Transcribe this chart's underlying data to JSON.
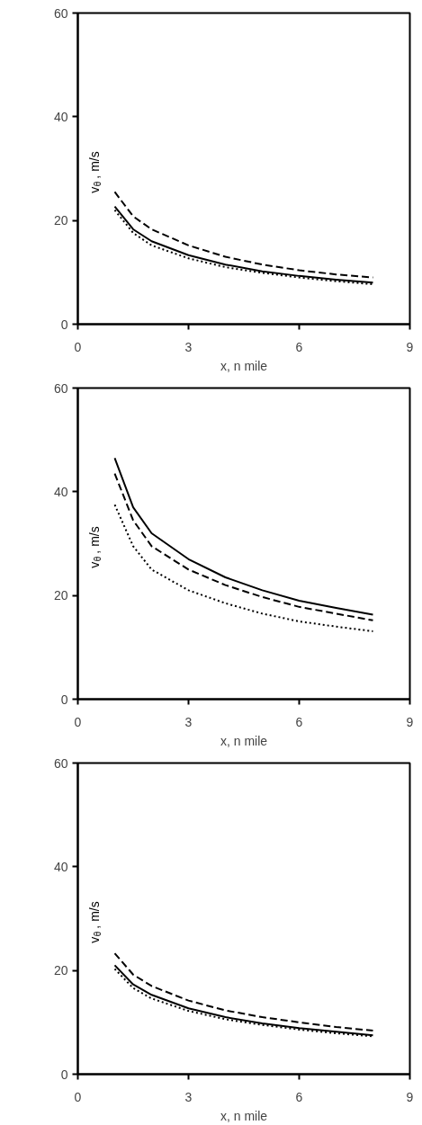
{
  "chart_data": [
    {
      "type": "line",
      "xlabel": "x, n mile",
      "ylabel": "v$_{θ}$, m/s",
      "xlim": [
        0,
        9
      ],
      "ylim": [
        0,
        60
      ],
      "xticks": [
        0,
        3,
        6,
        9
      ],
      "yticks": [
        0,
        20,
        40,
        60
      ],
      "grid": false,
      "x": [
        1,
        1.5,
        2,
        3,
        4,
        5,
        6,
        7,
        8
      ],
      "series": [
        {
          "color": "#000000",
          "line_style": "solid",
          "values": [
            22.7,
            18.3,
            16.0,
            13.3,
            11.5,
            10.2,
            9.3,
            8.6,
            8.0
          ]
        },
        {
          "color": "#000000",
          "line_style": "dashed",
          "values": [
            25.5,
            20.8,
            18.3,
            15.2,
            13.0,
            11.5,
            10.4,
            9.6,
            9.0
          ]
        },
        {
          "color": "#000000",
          "line_style": "dotted",
          "values": [
            22.0,
            17.6,
            15.2,
            12.7,
            11.0,
            9.9,
            9.0,
            8.3,
            7.7
          ]
        }
      ]
    },
    {
      "type": "line",
      "xlabel": "x, n mile",
      "ylabel": "v$_{θ}$, m/s",
      "xlim": [
        0,
        9
      ],
      "ylim": [
        0,
        60
      ],
      "xticks": [
        0,
        3,
        6,
        9
      ],
      "yticks": [
        0,
        20,
        40,
        60
      ],
      "grid": false,
      "x": [
        1,
        1.5,
        2,
        3,
        4,
        5,
        6,
        7,
        8
      ],
      "series": [
        {
          "color": "#000000",
          "line_style": "solid",
          "values": [
            46.5,
            37.0,
            32.0,
            27.0,
            23.5,
            21.0,
            19.0,
            17.6,
            16.3
          ]
        },
        {
          "color": "#000000",
          "line_style": "dashed",
          "values": [
            43.5,
            34.5,
            29.5,
            25.0,
            22.0,
            19.7,
            17.8,
            16.5,
            15.2
          ]
        },
        {
          "color": "#000000",
          "line_style": "dotted",
          "values": [
            37.5,
            29.5,
            25.0,
            21.0,
            18.5,
            16.5,
            15.0,
            14.0,
            13.1
          ]
        }
      ]
    },
    {
      "type": "line",
      "xlabel": "x, n mile",
      "ylabel": "v$_{θ}$, m/s",
      "xlim": [
        0,
        9
      ],
      "ylim": [
        0,
        60
      ],
      "xticks": [
        0,
        3,
        6,
        9
      ],
      "yticks": [
        0,
        20,
        40,
        60
      ],
      "grid": false,
      "x": [
        1,
        1.5,
        2,
        3,
        4,
        5,
        6,
        7,
        8
      ],
      "series": [
        {
          "color": "#000000",
          "line_style": "solid",
          "values": [
            21.0,
            17.3,
            15.3,
            12.7,
            11.0,
            9.8,
            8.9,
            8.2,
            7.5
          ]
        },
        {
          "color": "#000000",
          "line_style": "dashed",
          "values": [
            23.3,
            19.2,
            17.0,
            14.2,
            12.3,
            11.0,
            10.0,
            9.1,
            8.4
          ]
        },
        {
          "color": "#000000",
          "line_style": "dotted",
          "values": [
            20.3,
            16.6,
            14.6,
            12.2,
            10.6,
            9.5,
            8.6,
            7.9,
            7.3
          ]
        }
      ]
    }
  ]
}
